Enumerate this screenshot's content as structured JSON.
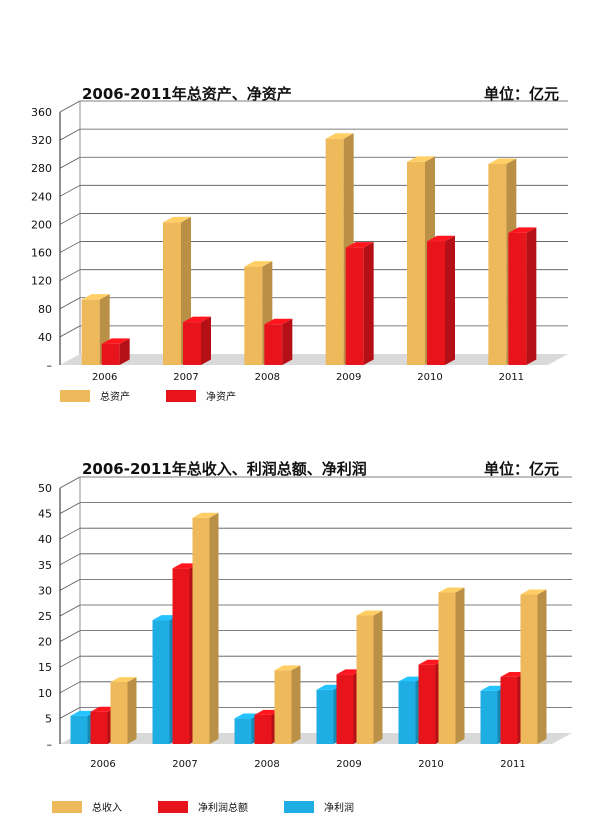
{
  "chart_data": [
    {
      "type": "bar",
      "title": "2006-2011年总资产、净资产",
      "unit_label": "单位：亿元",
      "categories": [
        "2006",
        "2007",
        "2008",
        "2009",
        "2010",
        "2011"
      ],
      "series": [
        {
          "name": "总资产",
          "values": [
            93,
            203,
            140,
            322,
            289,
            286
          ],
          "color": "#EEB95A"
        },
        {
          "name": "净资产",
          "values": [
            30,
            61,
            58,
            167,
            176,
            188
          ],
          "color": "#E8141C"
        }
      ],
      "ylim": [
        0,
        360
      ],
      "yticks": [
        "–",
        "40",
        "80",
        "120",
        "160",
        "200",
        "240",
        "280",
        "320",
        "360"
      ],
      "grid": true,
      "legend_position": "bottom-left"
    },
    {
      "type": "bar",
      "title": "2006-2011年总收入、利润总额、净利润",
      "unit_label": "单位：亿元",
      "categories": [
        "2006",
        "2007",
        "2008",
        "2009",
        "2010",
        "2011"
      ],
      "series": [
        {
          "name": "净利润",
          "values": [
            5.5,
            24.2,
            5,
            10.6,
            12.2,
            10.4
          ],
          "color": "#1EAEE4"
        },
        {
          "name": "净利润总额",
          "values": [
            6.3,
            34.3,
            5.7,
            13.6,
            15.5,
            13.1
          ],
          "color": "#E8141C"
        },
        {
          "name": "总收入",
          "values": [
            12.1,
            44.2,
            14.4,
            25.1,
            29.6,
            29.2
          ],
          "color": "#EEB95A"
        }
      ],
      "legend_order": [
        "总收入",
        "净利润总额",
        "净利润"
      ],
      "ylim": [
        0,
        50
      ],
      "yticks": [
        "–",
        "5",
        "10",
        "15",
        "20",
        "25",
        "30",
        "35",
        "40",
        "45",
        "50"
      ],
      "grid": true,
      "legend_position": "bottom-left"
    }
  ]
}
